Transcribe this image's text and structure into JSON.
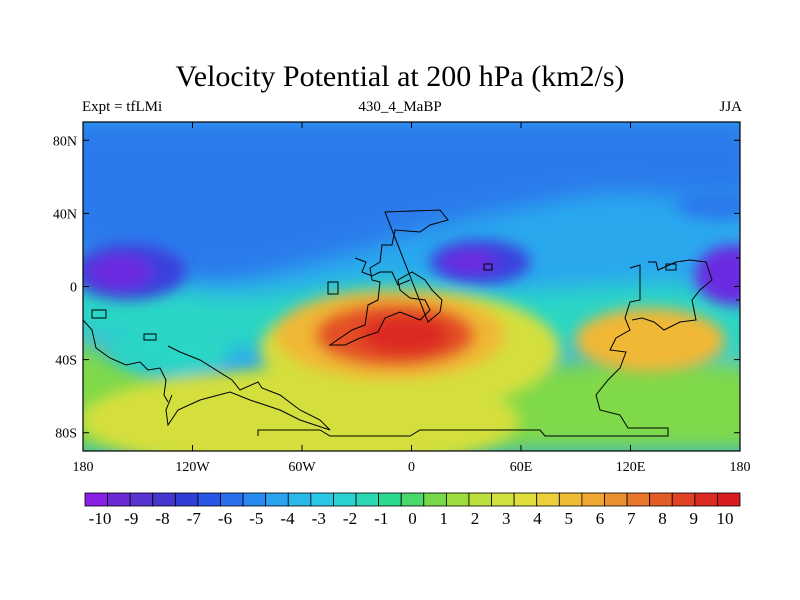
{
  "title": "Velocity Potential at 200 hPa (km2/s)",
  "subtitle_left": "Expt = tfLMi",
  "subtitle_center": "430_4_MaBP",
  "subtitle_right": "JJA",
  "map": {
    "lon_range": [
      -180,
      180
    ],
    "lat_range": [
      -90,
      90
    ],
    "lat_ticks": [
      {
        "value": 80,
        "label": "80N"
      },
      {
        "value": 40,
        "label": "40N"
      },
      {
        "value": 0,
        "label": "0"
      },
      {
        "value": -40,
        "label": "40S"
      },
      {
        "value": -80,
        "label": "80S"
      }
    ],
    "lon_ticks": [
      {
        "value": -180,
        "label": "180"
      },
      {
        "value": -120,
        "label": "120W"
      },
      {
        "value": -60,
        "label": "60W"
      },
      {
        "value": 0,
        "label": "0"
      },
      {
        "value": 60,
        "label": "60E"
      },
      {
        "value": 120,
        "label": "120E"
      },
      {
        "value": 180,
        "label": "180"
      }
    ]
  },
  "colorbar": {
    "labels": [
      "-10",
      "-9",
      "-8",
      "-7",
      "-6",
      "-5",
      "-4",
      "-3",
      "-2",
      "-1",
      "0",
      "1",
      "2",
      "3",
      "4",
      "5",
      "6",
      "7",
      "8",
      "9",
      "10"
    ],
    "colors": [
      "#8a1fe6",
      "#6b2ad6",
      "#5a34d2",
      "#4637cf",
      "#2f3fd6",
      "#2a55e6",
      "#2a6fee",
      "#2a89f1",
      "#2aa2ef",
      "#2ab7ea",
      "#2ac8e6",
      "#2ad2d2",
      "#2ad8b4",
      "#2ad88e",
      "#4ad86a",
      "#76d94a",
      "#9cdc3c",
      "#bade3c",
      "#d0e03c",
      "#e0de3c",
      "#eccf3a",
      "#f0bc36",
      "#f0a632",
      "#ec8f2e",
      "#e8762a",
      "#e45c26",
      "#e04224",
      "#dc2a22",
      "#d81c20"
    ]
  },
  "field_colors": {
    "neg_strong": "#6a2ce0",
    "neg_mid": "#3a3fdc",
    "neg_light": "#2c7aec",
    "base": "#2aa8ee",
    "zero": "#2ad6c6",
    "pos_light": "#7fd94a",
    "pos_mid": "#d4df3c",
    "pos_high": "#f0b836",
    "pos_strong": "#e45026"
  }
}
